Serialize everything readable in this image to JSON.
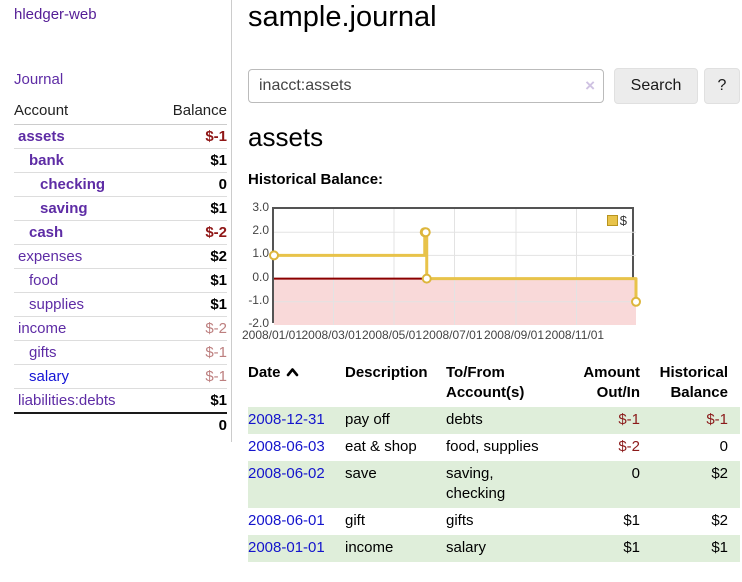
{
  "app": {
    "brand": "hledger-web"
  },
  "nav": {
    "journal": "Journal"
  },
  "sidebar": {
    "header": {
      "account": "Account",
      "balance": "Balance"
    },
    "accounts": [
      {
        "name": "assets",
        "depth": 0,
        "balance": "$-1",
        "in_query": true,
        "balance_style": "neg-strong"
      },
      {
        "name": "bank",
        "depth": 1,
        "balance": "$1",
        "in_query": true,
        "balance_style": "pos"
      },
      {
        "name": "checking",
        "depth": 2,
        "balance": "0",
        "in_query": true,
        "balance_style": "pos"
      },
      {
        "name": "saving",
        "depth": 2,
        "balance": "$1",
        "in_query": true,
        "balance_style": "pos"
      },
      {
        "name": "cash",
        "depth": 1,
        "balance": "$-2",
        "in_query": true,
        "balance_style": "neg-strong"
      },
      {
        "name": "expenses",
        "depth": 0,
        "balance": "$2",
        "in_query": false,
        "balance_style": "pos"
      },
      {
        "name": "food",
        "depth": 1,
        "balance": "$1",
        "in_query": false,
        "balance_style": "pos"
      },
      {
        "name": "supplies",
        "depth": 1,
        "balance": "$1",
        "in_query": false,
        "balance_style": "pos"
      },
      {
        "name": "income",
        "depth": 0,
        "balance": "$-2",
        "in_query": false,
        "balance_style": "neg-muted"
      },
      {
        "name": "gifts",
        "depth": 1,
        "balance": "$-1",
        "in_query": false,
        "balance_style": "neg-muted"
      },
      {
        "name": "salary",
        "depth": 1,
        "balance": "$-1",
        "in_query": false,
        "balance_style": "neg-muted",
        "link_color": "blue"
      },
      {
        "name": "liabilities:debts",
        "depth": 0,
        "balance": "$1",
        "in_query": false,
        "balance_style": "pos"
      }
    ],
    "total": "0"
  },
  "header": {
    "title": "sample.journal"
  },
  "search": {
    "query": "inacct:assets",
    "clear_icon": "×",
    "button": "Search",
    "help_button": "?"
  },
  "account_page": {
    "title": "assets",
    "chart_title": "Historical Balance:"
  },
  "chart_data": {
    "type": "line",
    "step": true,
    "title": "Historical Balance:",
    "legend": "$",
    "legend_position": "top-right",
    "grid": true,
    "ylim": [
      -2,
      3
    ],
    "xlim_days": [
      0,
      365
    ],
    "y_ticks": [
      {
        "label": "3.0",
        "value": 3
      },
      {
        "label": "2.0",
        "value": 2
      },
      {
        "label": "1.0",
        "value": 1
      },
      {
        "label": "0.0",
        "value": 0
      },
      {
        "label": "-1.0",
        "value": -1
      },
      {
        "label": "-2.0",
        "value": -2
      }
    ],
    "x_ticks": [
      {
        "label": "2008/01/01",
        "day": 0
      },
      {
        "label": "2008/03/01",
        "day": 60
      },
      {
        "label": "2008/05/01",
        "day": 121
      },
      {
        "label": "2008/07/01",
        "day": 182
      },
      {
        "label": "2008/09/01",
        "day": 244
      },
      {
        "label": "2008/11/01",
        "day": 305
      }
    ],
    "series": [
      {
        "name": "$",
        "color": "#e8c34a",
        "points": [
          {
            "date": "2008-01-01",
            "day": 0,
            "value": 1
          },
          {
            "date": "2008-06-01",
            "day": 152,
            "value": 2
          },
          {
            "date": "2008-06-02",
            "day": 153,
            "value": 2
          },
          {
            "date": "2008-06-03",
            "day": 154,
            "value": 0
          },
          {
            "date": "2008-12-31",
            "day": 365,
            "value": -1
          }
        ]
      }
    ],
    "negative_region_color": "#f9d9d9",
    "zero_line_color": "#8b0000",
    "gridline_color": "#e3e3e3"
  },
  "register": {
    "columns": [
      {
        "label": "Date",
        "align": "left",
        "sortable": true
      },
      {
        "label": "Description",
        "align": "left"
      },
      {
        "label": "To/From\nAccount(s)",
        "align": "left"
      },
      {
        "label": "Amount\nOut/In",
        "align": "right"
      },
      {
        "label": "Historical\nBalance",
        "align": "right"
      }
    ],
    "rows": [
      {
        "date": "2008-12-31",
        "description": "pay off",
        "accounts": "debts",
        "amount": "$-1",
        "amount_neg": true,
        "balance": "$-1",
        "balance_neg": true
      },
      {
        "date": "2008-06-03",
        "description": "eat & shop",
        "accounts": "food, supplies",
        "amount": "$-2",
        "amount_neg": true,
        "balance": "0",
        "balance_neg": false
      },
      {
        "date": "2008-06-02",
        "description": "save",
        "accounts": "saving,\nchecking",
        "amount": "0",
        "amount_neg": false,
        "balance": "$2",
        "balance_neg": false
      },
      {
        "date": "2008-06-01",
        "description": "gift",
        "accounts": "gifts",
        "amount": "$1",
        "amount_neg": false,
        "balance": "$2",
        "balance_neg": false
      },
      {
        "date": "2008-01-01",
        "description": "income",
        "accounts": "salary",
        "amount": "$1",
        "amount_neg": false,
        "balance": "$1",
        "balance_neg": false
      }
    ]
  },
  "colors": {
    "accent_purple": "#5e2ca5",
    "link_blue": "#1414cc",
    "negative_red": "#8b1a1a",
    "muted_negative": "#bd7f7f",
    "row_green": "#dfeeda",
    "series_gold": "#e8c34a"
  }
}
